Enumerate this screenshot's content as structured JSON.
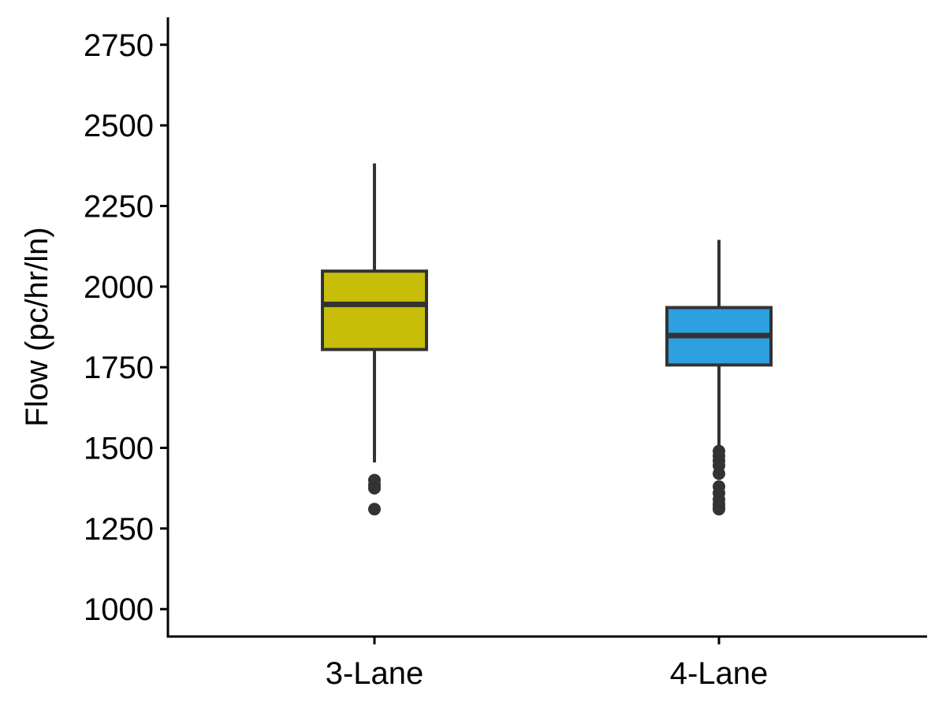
{
  "chart_data": {
    "type": "box",
    "title": "",
    "xlabel": "",
    "ylabel": "Flow (pc/hr/ln)",
    "ylim": [
      915,
      2835
    ],
    "y_ticks": [
      1000,
      1250,
      1500,
      1750,
      2000,
      2250,
      2500,
      2750
    ],
    "y_tick_labels": [
      "1000",
      "1250",
      "1500",
      "1750",
      "2000",
      "2250",
      "2500",
      "2750"
    ],
    "categories": [
      "3-Lane",
      "4-Lane"
    ],
    "grid": false,
    "legend": "none",
    "boxes": [
      {
        "category": "3-Lane",
        "color": "#C8BE0A",
        "whisker_low": 1455,
        "q1": 1805,
        "median": 1945,
        "q3": 2048,
        "whisker_high": 2382,
        "outliers": [
          1400,
          1385,
          1375,
          1310
        ]
      },
      {
        "category": "4-Lane",
        "color": "#2E9FDF",
        "whisker_low": 1500,
        "q1": 1757,
        "median": 1848,
        "q3": 1935,
        "whisker_high": 2145,
        "outliers": [
          1490,
          1475,
          1460,
          1445,
          1420,
          1380,
          1360,
          1340,
          1325,
          1315,
          1310
        ]
      }
    ]
  }
}
